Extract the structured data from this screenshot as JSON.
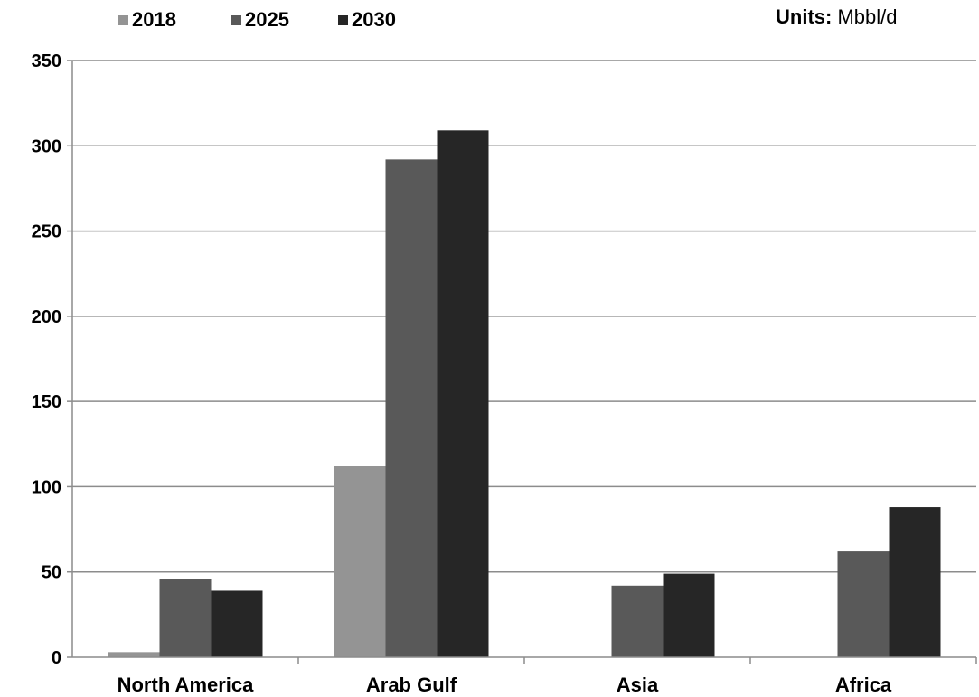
{
  "units": {
    "label": "Units:",
    "value": "Mbbl/d"
  },
  "chart_data": {
    "type": "bar",
    "categories": [
      "North America",
      "Arab Gulf",
      "Asia",
      "Africa"
    ],
    "series": [
      {
        "name": "2018",
        "values": [
          3,
          112,
          0,
          0
        ],
        "color": "#949494"
      },
      {
        "name": "2025",
        "values": [
          46,
          292,
          42,
          62
        ],
        "color": "#595959"
      },
      {
        "name": "2030",
        "values": [
          39,
          309,
          49,
          88
        ],
        "color": "#262626"
      }
    ],
    "ylim": [
      0,
      350
    ],
    "yticks": [
      0,
      50,
      100,
      150,
      200,
      250,
      300,
      350
    ],
    "grid": true,
    "legend": "top-left",
    "title": "",
    "xlabel": "",
    "ylabel": ""
  }
}
